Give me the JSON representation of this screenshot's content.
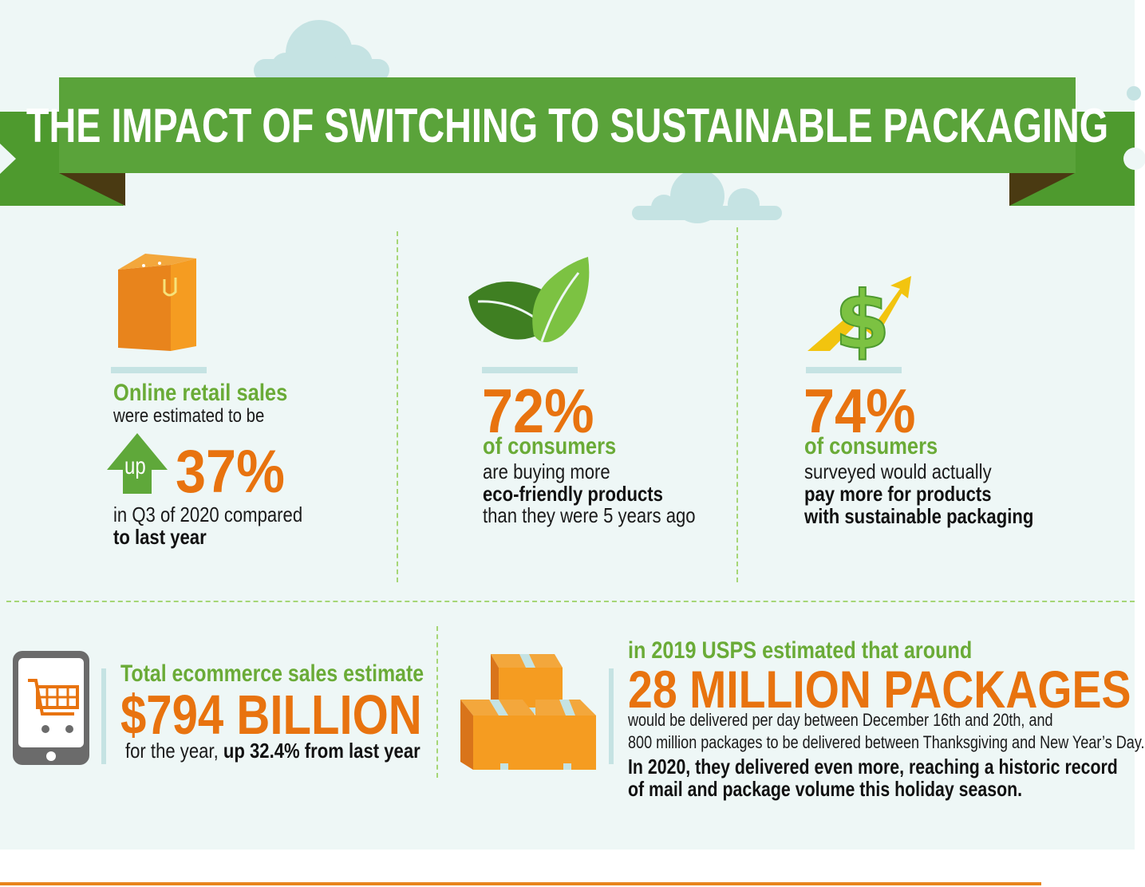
{
  "title": "THE IMPACT OF SWITCHING TO SUSTAINABLE PACKAGING",
  "colors": {
    "green": "#6aab37",
    "ribbon": "#5aa33a",
    "orange": "#e8730f",
    "background": "#eef7f6",
    "dashes": "#a6d676"
  },
  "stat1": {
    "icon": "shopping-bag-icon",
    "heading": "Online retail sales",
    "line1": "were estimated to be",
    "arrow_label": "up",
    "value": "37%",
    "line2": "in Q3 of 2020 compared",
    "line3": "to last year"
  },
  "stat2": {
    "icon": "leaf-icon",
    "value": "72%",
    "heading": "of consumers",
    "line1": "are buying more",
    "line2": "eco-friendly products",
    "line3": "than they were 5 years ago"
  },
  "stat3": {
    "icon": "dollar-growth-icon",
    "value": "74%",
    "heading": "of consumers",
    "line1": "surveyed would actually",
    "line2": "pay more for products",
    "line3": "with sustainable packaging"
  },
  "stat4": {
    "icon": "tablet-cart-icon",
    "heading": "Total ecommerce sales estimate",
    "value": "$794 BILLION",
    "line_prefix": "for the year, ",
    "line_bold": "up 32.4% from last year"
  },
  "stat5": {
    "icon": "boxes-icon",
    "heading": "in 2019 USPS estimated that around",
    "value": "28 MILLION PACKAGES",
    "line1": "would be delivered per day between December 16th and 20th, and",
    "line2": "800 million packages to be delivered between Thanksgiving and New Year’s Day.",
    "line3": "In 2020, they delivered even more, reaching a historic record",
    "line4": "of mail and package volume this holiday season."
  }
}
